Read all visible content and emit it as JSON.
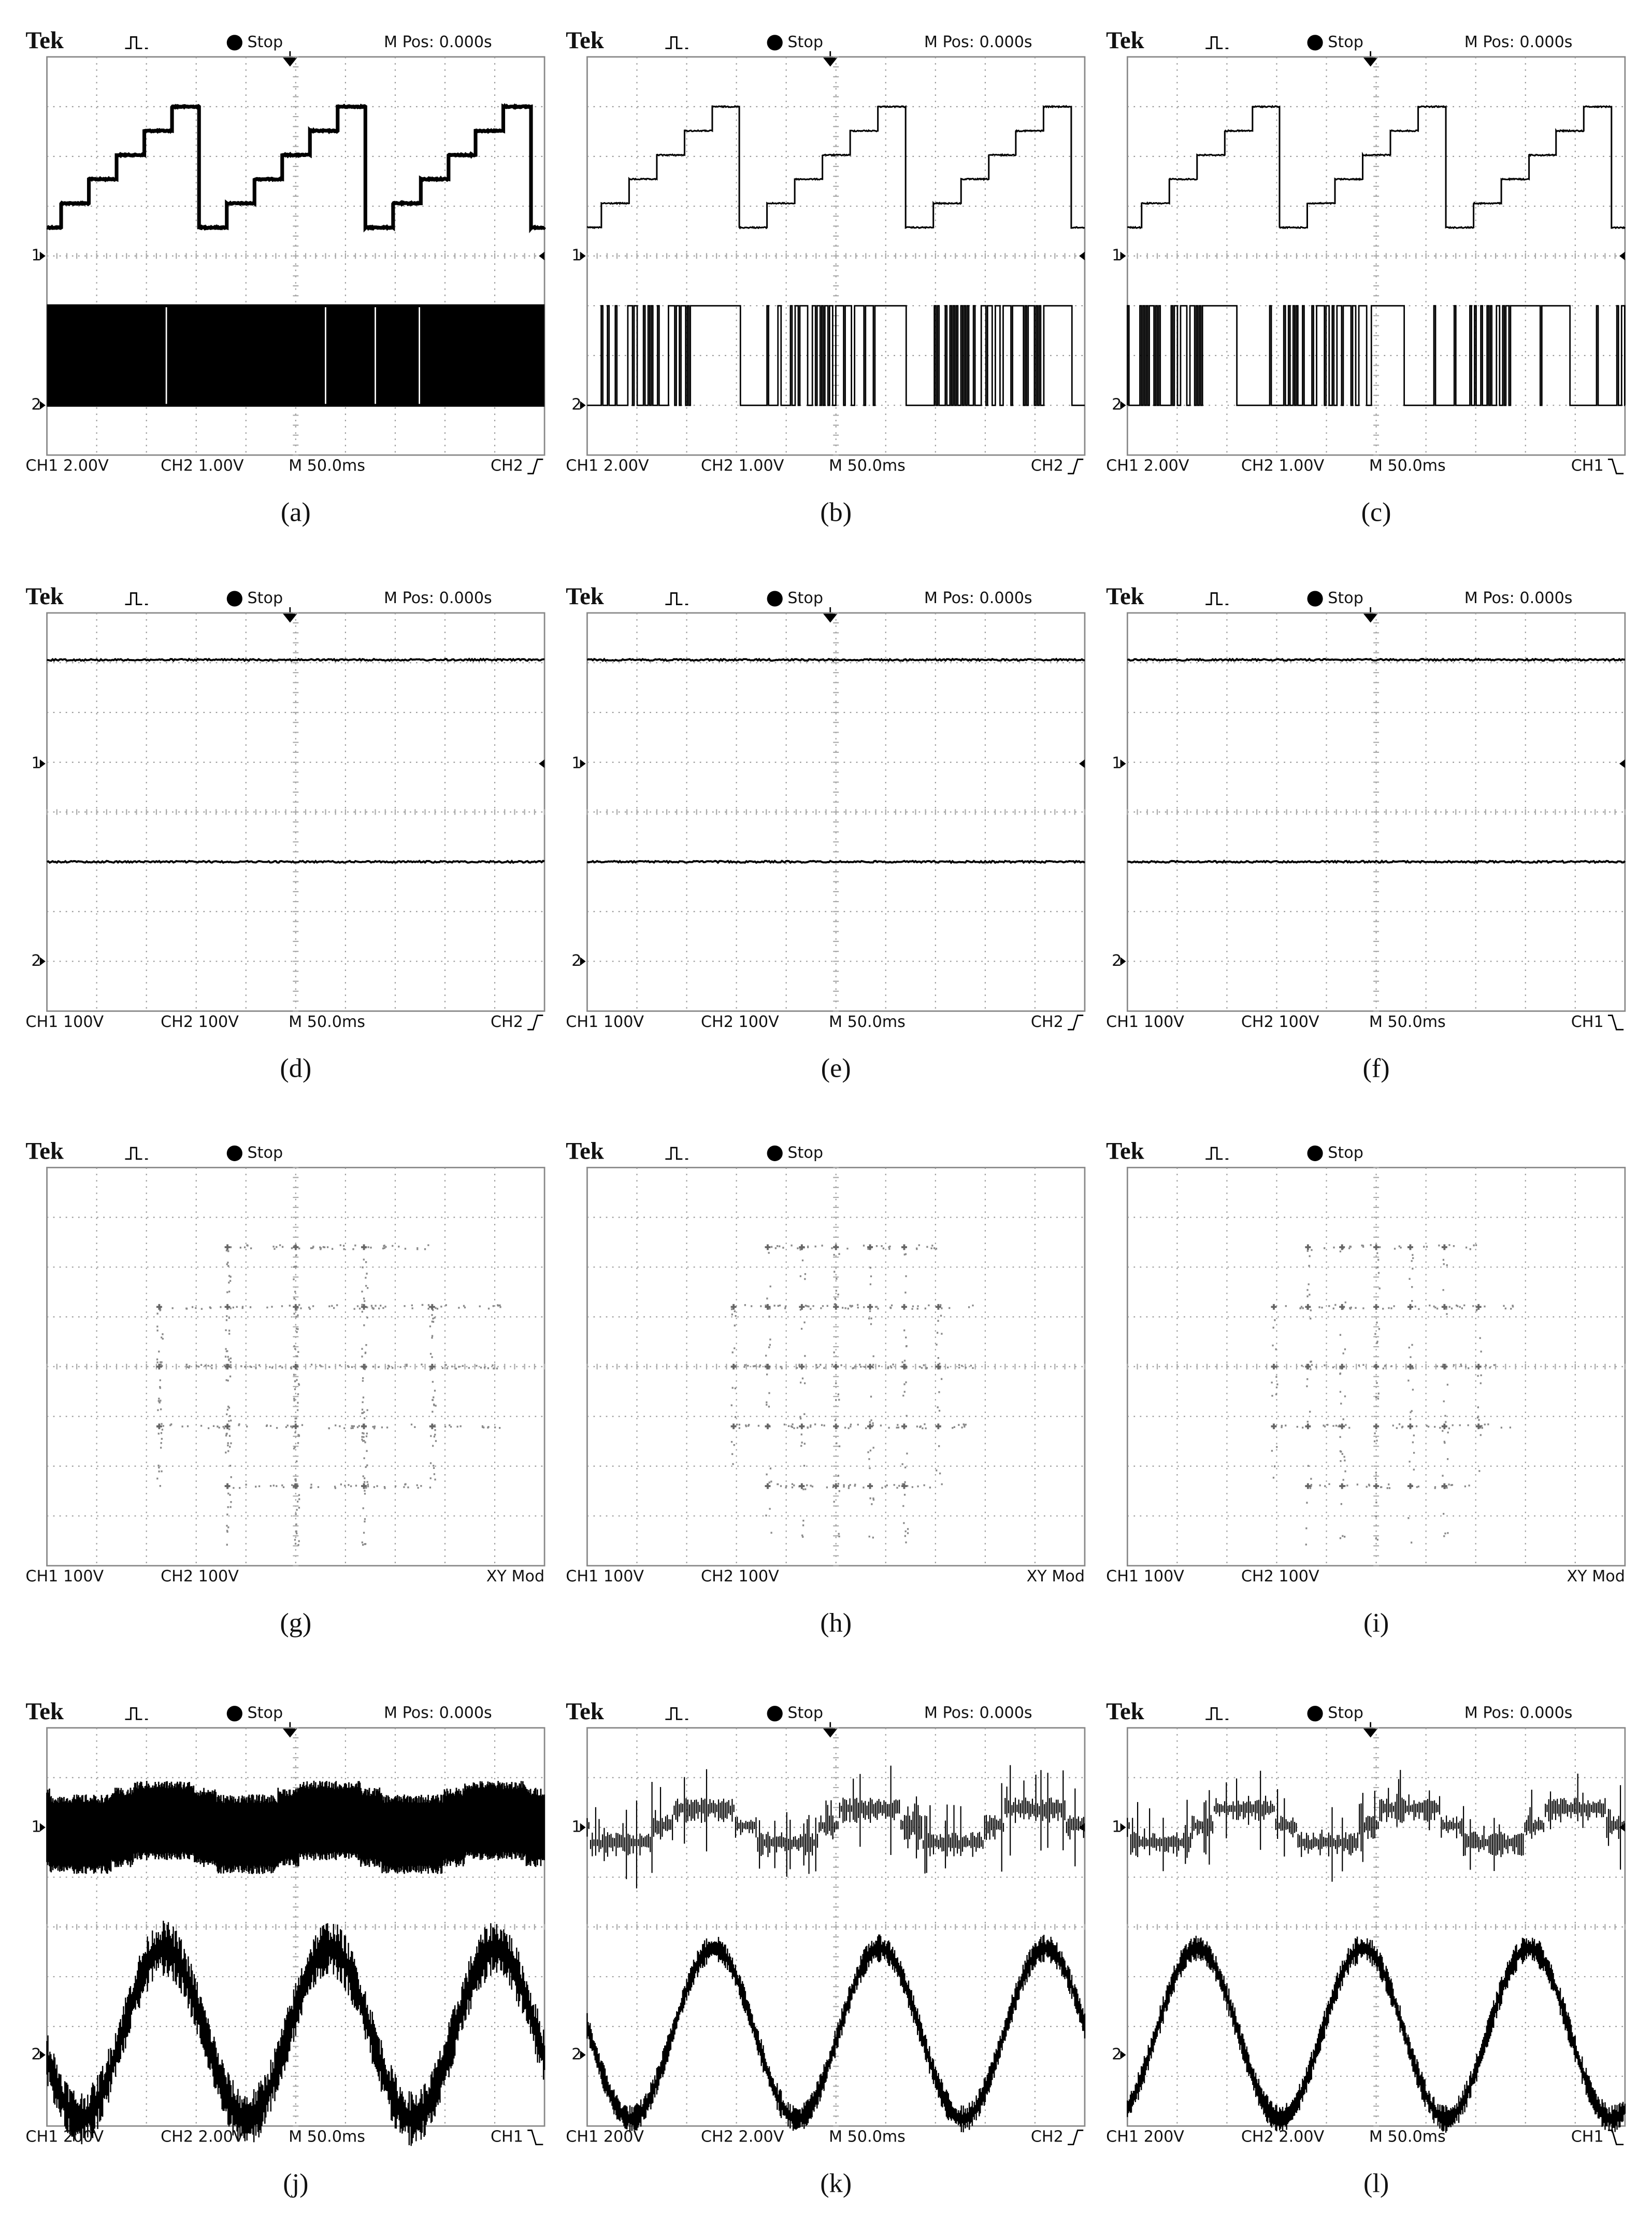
{
  "panels": [
    {
      "header": {
        "brand": "Tek",
        "status": "Stop",
        "position": "M Pos: 0.000s"
      },
      "markers": [
        "1",
        "2"
      ],
      "footer": [
        "CH1  2.00V",
        "CH2  1.00V",
        "M 50.0ms",
        "CH2"
      ],
      "caption": "(a)"
    },
    {
      "header": {
        "brand": "Tek",
        "status": "Stop",
        "position": "M Pos: 0.000s"
      },
      "markers": [
        "1",
        "2"
      ],
      "footer": [
        "CH1  2.00V",
        "CH2  1.00V",
        "M 50.0ms",
        "CH2"
      ],
      "caption": "(b)"
    },
    {
      "header": {
        "brand": "Tek",
        "status": "Stop",
        "position": "M Pos: 0.000s"
      },
      "markers": [
        "1",
        "2"
      ],
      "footer": [
        "CH1  2.00V",
        "CH2  1.00V",
        "M 50.0ms",
        "CH1"
      ],
      "caption": "(c)"
    },
    {
      "header": {
        "brand": "Tek",
        "status": "Stop",
        "position": "M Pos: 0.000s"
      },
      "markers": [
        "1",
        "2"
      ],
      "footer": [
        "CH1  100V",
        "CH2  100V",
        "M 50.0ms",
        "CH2"
      ],
      "caption": "(d)"
    },
    {
      "header": {
        "brand": "Tek",
        "status": "Stop",
        "position": "M Pos: 0.000s"
      },
      "markers": [
        "1",
        "2"
      ],
      "footer": [
        "CH1  100V",
        "CH2  100V",
        "M 50.0ms",
        "CH2"
      ],
      "caption": "(e)"
    },
    {
      "header": {
        "brand": "Tek",
        "status": "Stop",
        "position": "M Pos: 0.000s"
      },
      "markers": [
        "1",
        "2"
      ],
      "footer": [
        "CH1  100V",
        "CH2  100V",
        "M 50.0ms",
        "CH1"
      ],
      "caption": "(f)"
    },
    {
      "header": {
        "brand": "Tek",
        "status": "Stop"
      },
      "footer": [
        "CH1  100V",
        "CH2  100V",
        "XY Mod"
      ],
      "caption": "(g)"
    },
    {
      "header": {
        "brand": "Tek",
        "status": "Stop"
      },
      "footer": [
        "CH1  100V",
        "CH2  100V",
        "XY Mod"
      ],
      "caption": "(h)"
    },
    {
      "header": {
        "brand": "Tek",
        "status": "Stop"
      },
      "footer": [
        "CH1  100V",
        "CH2  100V",
        "XY Mod"
      ],
      "caption": "(i)"
    },
    {
      "header": {
        "brand": "Tek",
        "status": "Stop",
        "position": "M Pos: 0.000s"
      },
      "markers": [
        "1",
        "2"
      ],
      "footer": [
        "CH1  200V",
        "CH2  2.00V",
        "M 50.0ms",
        "CH1"
      ],
      "caption": "(j)"
    },
    {
      "header": {
        "brand": "Tek",
        "status": "Stop",
        "position": "M Pos: 0.000s"
      },
      "markers": [
        "1",
        "2"
      ],
      "footer": [
        "CH1  200V",
        "CH2  2.00V",
        "M 50.0ms",
        "CH2"
      ],
      "caption": "(k)"
    },
    {
      "header": {
        "brand": "Tek",
        "status": "Stop",
        "position": "M Pos: 0.000s"
      },
      "markers": [
        "1",
        "2"
      ],
      "footer": [
        "CH1  200V",
        "CH2  2.00V",
        "M 50.0ms",
        "CH1"
      ],
      "caption": "(l)"
    }
  ]
}
